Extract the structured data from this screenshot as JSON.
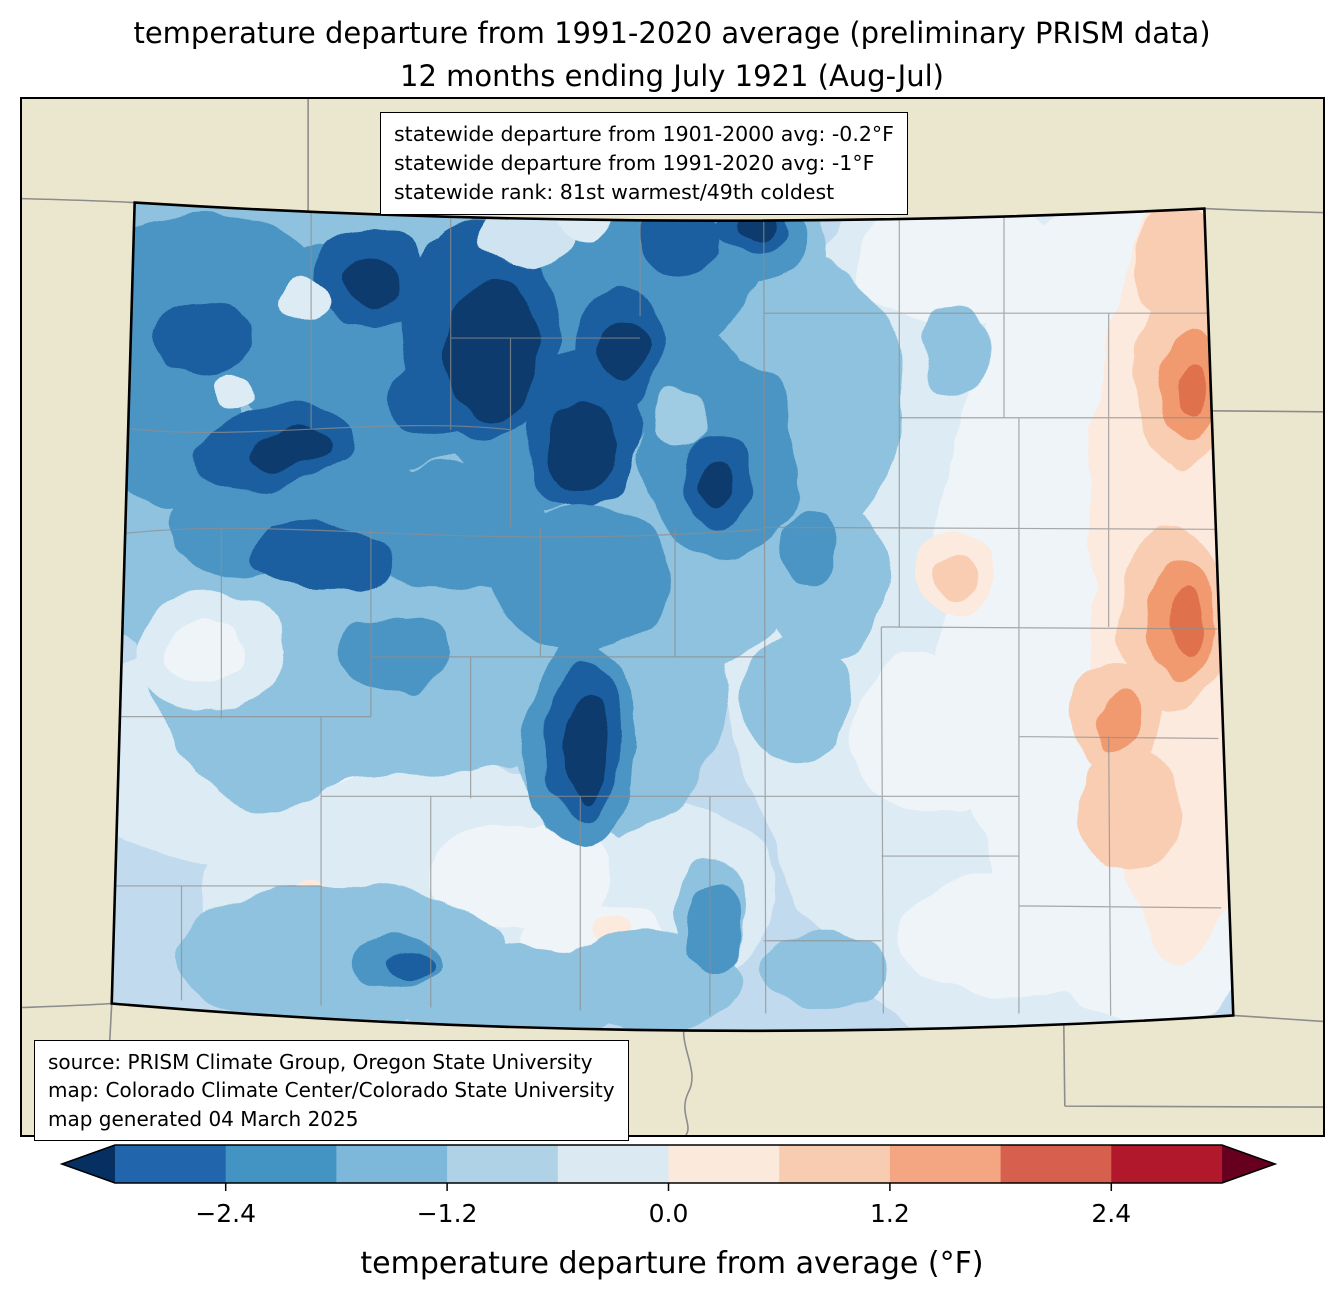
{
  "title": {
    "line1": "temperature departure from 1991-2020 average (preliminary PRISM data)",
    "line2": "12 months ending July 1921 (Aug-Jul)"
  },
  "stats_box": {
    "lines": [
      "statewide departure from 1901-2000 avg: -0.2°F",
      "statewide departure from 1991-2020 avg: -1°F",
      "statewide rank: 81st warmest/49th coldest"
    ]
  },
  "source_box": {
    "lines": [
      "source: PRISM Climate Group, Oregon State University",
      "map: Colorado Climate Center/Colorado State University",
      "map generated 04 March 2025"
    ]
  },
  "colorbar": {
    "label": "temperature departure from average (°F)",
    "ticks": [
      "−2.4",
      "−1.2",
      "0.0",
      "1.2",
      "2.4"
    ],
    "tick_values": [
      -2.4,
      -1.2,
      0.0,
      1.2,
      2.4
    ],
    "range": [
      -3.0,
      3.0
    ],
    "segment_colors": [
      "#2166ac",
      "#4393c3",
      "#7db8da",
      "#b0d2e7",
      "#dbe9f2",
      "#fbe9dc",
      "#f8ccb1",
      "#f4a582",
      "#d6604d",
      "#b2182b"
    ],
    "under_color": "#053061",
    "over_color": "#67001f"
  },
  "chart_data": {
    "type": "heatmap",
    "subtype": "filled-contour choropleth map",
    "region": "Colorado (with county boundaries; neighboring state lines on tan background)",
    "title": "temperature departure from 1991-2020 average (preliminary PRISM data)",
    "subtitle": "12 months ending July 1921 (Aug-Jul)",
    "statewide_departure_from_1901_2000_avg_F": -0.2,
    "statewide_departure_from_1991_2020_avg_F": -1,
    "statewide_rank": "81st warmest/49th coldest",
    "colorbar_label": "temperature departure from average (°F)",
    "colorbar_ticks": [
      -2.4,
      -1.2,
      0.0,
      1.2,
      2.4
    ],
    "colorbar_range": [
      -3.0,
      3.0
    ],
    "colormap": "blue (cold) to red (warm) diverging, discrete ~0.6°F bins with under/over arrows",
    "pattern": "strong cold anomalies (below -2.4°F, deep navy) over the northwest and central mountains; moderate cold anomalies across most of the west and plains; near-normal values in the south-central valleys and east-central plains; slight warm anomalies (up to ~+1.5°F, salmon/red) along the far eastern border",
    "legend_position": "horizontal colorbar below map"
  }
}
